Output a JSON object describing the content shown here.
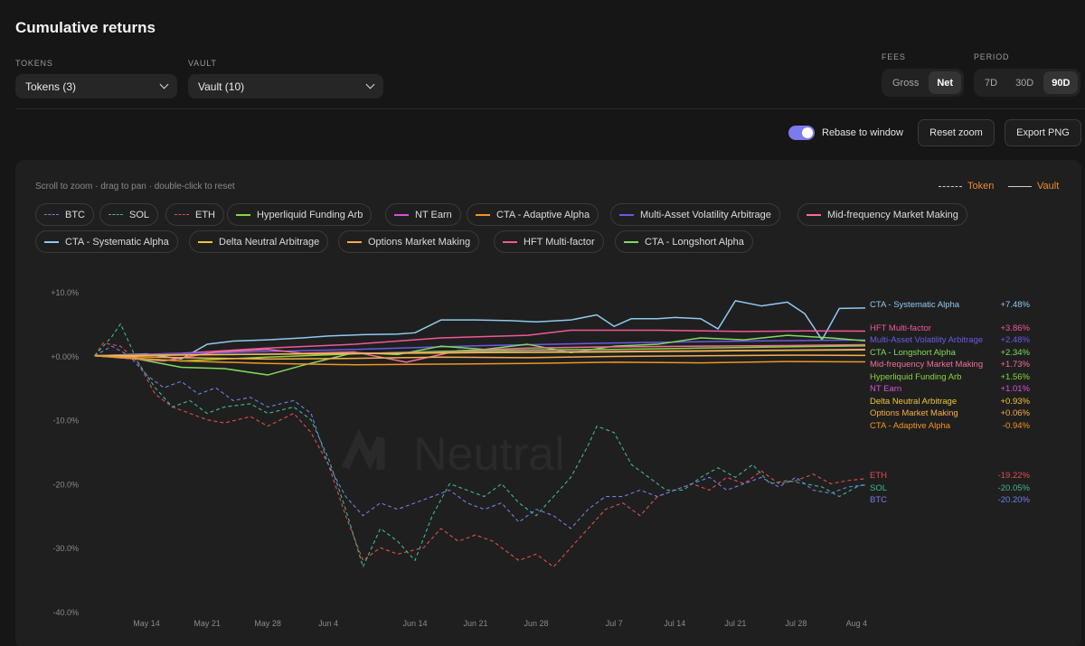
{
  "title": "Cumulative returns",
  "filters": {
    "tokens_label": "TOKENS",
    "tokens_value": "Tokens (3)",
    "vault_label": "VAULT",
    "vault_value": "Vault (10)",
    "fees_label": "FEES",
    "fees_options": [
      "Gross",
      "Net"
    ],
    "fees_selected": "Net",
    "period_label": "PERIOD",
    "period_options": [
      "7D",
      "30D",
      "90D"
    ],
    "period_selected": "90D"
  },
  "controls": {
    "rebase_label": "Rebase to window",
    "rebase_on": true,
    "reset_zoom": "Reset zoom",
    "export_png": "Export PNG"
  },
  "hint": "Scroll to zoom · drag to pan · double-click to reset",
  "legend_keys": {
    "token": "Token",
    "vault": "Vault"
  },
  "watermark": "Neutral",
  "chips": [
    {
      "name": "BTC",
      "color": "#6f7fe8",
      "kind": "token"
    },
    {
      "name": "SOL",
      "color": "#3fb98d",
      "kind": "token"
    },
    {
      "name": "ETH",
      "color": "#e04e4e",
      "kind": "token"
    },
    {
      "name": "Hyperliquid Funding Arb",
      "color": "#8ad63a",
      "kind": "vault"
    },
    {
      "name": "NT Earn",
      "color": "#d553d5",
      "kind": "vault"
    },
    {
      "name": "CTA - Adaptive Alpha",
      "color": "#f0961e",
      "kind": "vault"
    },
    {
      "name": "Multi-Asset Volatility Arbitrage",
      "color": "#6a5ae8",
      "kind": "vault"
    },
    {
      "name": "Mid-frequency Market Making",
      "color": "#f06f9a",
      "kind": "vault"
    },
    {
      "name": "CTA - Systematic Alpha",
      "color": "#8ec9f0",
      "kind": "vault"
    },
    {
      "name": "Delta Neutral Arbitrage",
      "color": "#f0c43a",
      "kind": "vault"
    },
    {
      "name": "Options Market Making",
      "color": "#f5ae4a",
      "kind": "vault"
    },
    {
      "name": "HFT Multi-factor",
      "color": "#f0589a",
      "kind": "vault"
    },
    {
      "name": "CTA - Longshort Alpha",
      "color": "#7fdc5a",
      "kind": "vault"
    }
  ],
  "chart_data": {
    "type": "line",
    "y_ticks": [
      "+10.0%",
      "+0.00%",
      "-10.0%",
      "-20.0%",
      "-30.0%",
      "-40.0%"
    ],
    "y_tick_values": [
      10,
      0,
      -10,
      -20,
      -30,
      -40
    ],
    "ylim": [
      -40,
      10
    ],
    "x_ticks": [
      "May 14",
      "May 21",
      "May 28",
      "Jun 4",
      "Jun 14",
      "Jun 21",
      "Jun 28",
      "Jul 7",
      "Jul 14",
      "Jul 21",
      "Jul 28",
      "Aug 4"
    ],
    "x_tick_days": [
      6,
      13,
      20,
      27,
      37,
      44,
      51,
      60,
      67,
      74,
      81,
      88
    ],
    "x_range_days": [
      -1,
      89
    ],
    "series": [
      {
        "name": "CTA - Systematic Alpha",
        "kind": "vault",
        "color": "#8ec9f0",
        "final_label": "+7.48%",
        "points": [
          [
            0,
            0
          ],
          [
            6,
            0.3
          ],
          [
            10,
            -0.5
          ],
          [
            13,
            1.8
          ],
          [
            16,
            2.3
          ],
          [
            20,
            2.5
          ],
          [
            24,
            2.8
          ],
          [
            27,
            3.1
          ],
          [
            31,
            3.3
          ],
          [
            35,
            3.4
          ],
          [
            37,
            3.6
          ],
          [
            40,
            5.6
          ],
          [
            44,
            5.6
          ],
          [
            48,
            5.5
          ],
          [
            51,
            5.3
          ],
          [
            55,
            5.6
          ],
          [
            58,
            6.4
          ],
          [
            60,
            4.6
          ],
          [
            62,
            5.8
          ],
          [
            65,
            5.8
          ],
          [
            67,
            6.0
          ],
          [
            70,
            5.8
          ],
          [
            72,
            4.2
          ],
          [
            74,
            8.6
          ],
          [
            77,
            7.8
          ],
          [
            80,
            8.4
          ],
          [
            82,
            6.6
          ],
          [
            84,
            2.5
          ],
          [
            86,
            7.4
          ],
          [
            90,
            7.48
          ]
        ]
      },
      {
        "name": "HFT Multi-factor",
        "kind": "vault",
        "color": "#f0589a",
        "final_label": "+3.86%",
        "points": [
          [
            0,
            0
          ],
          [
            10,
            0.4
          ],
          [
            20,
            1.2
          ],
          [
            30,
            1.8
          ],
          [
            40,
            2.8
          ],
          [
            50,
            3.2
          ],
          [
            55,
            4.0
          ],
          [
            65,
            4.0
          ],
          [
            75,
            3.8
          ],
          [
            82,
            3.9
          ],
          [
            90,
            3.86
          ]
        ]
      },
      {
        "name": "Multi-Asset Volatility Arbitrage",
        "kind": "vault",
        "color": "#6a5ae8",
        "final_label": "+2.48%",
        "points": [
          [
            0,
            0
          ],
          [
            15,
            0.5
          ],
          [
            30,
            1.0
          ],
          [
            45,
            1.6
          ],
          [
            60,
            2.0
          ],
          [
            75,
            2.3
          ],
          [
            90,
            2.48
          ]
        ]
      },
      {
        "name": "CTA - Longshort Alpha",
        "kind": "vault",
        "color": "#7fdc5a",
        "final_label": "+2.34%",
        "points": [
          [
            0,
            0
          ],
          [
            5,
            -0.5
          ],
          [
            10,
            -1.8
          ],
          [
            15,
            -2.0
          ],
          [
            20,
            -3.0
          ],
          [
            24,
            -1.5
          ],
          [
            27,
            -0.5
          ],
          [
            30,
            0.5
          ],
          [
            35,
            0.2
          ],
          [
            40,
            1.5
          ],
          [
            45,
            1.0
          ],
          [
            50,
            1.8
          ],
          [
            55,
            0.5
          ],
          [
            60,
            1.5
          ],
          [
            65,
            1.8
          ],
          [
            70,
            2.8
          ],
          [
            75,
            2.5
          ],
          [
            80,
            3.2
          ],
          [
            85,
            2.8
          ],
          [
            90,
            2.34
          ]
        ]
      },
      {
        "name": "Mid-frequency Market Making",
        "kind": "vault",
        "color": "#f06f9a",
        "final_label": "+1.73%",
        "points": [
          [
            0,
            0
          ],
          [
            8,
            -0.8
          ],
          [
            14,
            0.6
          ],
          [
            20,
            1.0
          ],
          [
            24,
            0.4
          ],
          [
            30,
            0.6
          ],
          [
            36,
            -1.0
          ],
          [
            42,
            0.8
          ],
          [
            50,
            1.2
          ],
          [
            60,
            1.4
          ],
          [
            70,
            1.5
          ],
          [
            80,
            1.6
          ],
          [
            90,
            1.73
          ]
        ]
      },
      {
        "name": "Hyperliquid Funding Arb",
        "kind": "vault",
        "color": "#8ad63a",
        "final_label": "+1.56%",
        "points": [
          [
            0,
            0
          ],
          [
            10,
            -0.8
          ],
          [
            20,
            -0.2
          ],
          [
            30,
            0.3
          ],
          [
            40,
            0.7
          ],
          [
            50,
            0.9
          ],
          [
            60,
            1.0
          ],
          [
            70,
            1.2
          ],
          [
            80,
            1.4
          ],
          [
            90,
            1.56
          ]
        ]
      },
      {
        "name": "NT Earn",
        "kind": "vault",
        "color": "#d553d5",
        "final_label": "+1.01%",
        "points": [
          [
            0,
            0
          ],
          [
            15,
            0.2
          ],
          [
            30,
            0.4
          ],
          [
            45,
            0.6
          ],
          [
            60,
            0.7
          ],
          [
            75,
            0.85
          ],
          [
            90,
            1.01
          ]
        ]
      },
      {
        "name": "Delta Neutral Arbitrage",
        "kind": "vault",
        "color": "#f0c43a",
        "final_label": "+0.93%",
        "points": [
          [
            0,
            0
          ],
          [
            15,
            0.2
          ],
          [
            30,
            0.35
          ],
          [
            45,
            0.5
          ],
          [
            60,
            0.6
          ],
          [
            75,
            0.8
          ],
          [
            90,
            0.93
          ]
        ]
      },
      {
        "name": "Options Market Making",
        "kind": "vault",
        "color": "#f5ae4a",
        "final_label": "+0.06%",
        "points": [
          [
            0,
            0
          ],
          [
            10,
            -0.3
          ],
          [
            20,
            -0.5
          ],
          [
            30,
            -0.4
          ],
          [
            40,
            -0.2
          ],
          [
            50,
            -0.3
          ],
          [
            60,
            -0.1
          ],
          [
            70,
            0.0
          ],
          [
            80,
            0.1
          ],
          [
            90,
            0.06
          ]
        ]
      },
      {
        "name": "CTA - Adaptive Alpha",
        "kind": "vault",
        "color": "#f0961e",
        "final_label": "-0.94%",
        "points": [
          [
            0,
            0
          ],
          [
            10,
            -0.8
          ],
          [
            20,
            -1.2
          ],
          [
            30,
            -1.4
          ],
          [
            40,
            -1.3
          ],
          [
            50,
            -1.2
          ],
          [
            60,
            -1.0
          ],
          [
            70,
            -1.1
          ],
          [
            80,
            -0.9
          ],
          [
            90,
            -0.94
          ]
        ]
      },
      {
        "name": "ETH",
        "kind": "token",
        "color": "#e04e4e",
        "final_label": "-19.22%",
        "points": [
          [
            0,
            0
          ],
          [
            1,
            2
          ],
          [
            3,
            1.5
          ],
          [
            5,
            -1
          ],
          [
            7,
            -6
          ],
          [
            9,
            -8
          ],
          [
            11,
            -9
          ],
          [
            13,
            -10
          ],
          [
            15,
            -10.5
          ],
          [
            18,
            -9.5
          ],
          [
            20,
            -11
          ],
          [
            23,
            -9
          ],
          [
            25,
            -12
          ],
          [
            27,
            -17
          ],
          [
            29,
            -25
          ],
          [
            31,
            -32
          ],
          [
            33,
            -30
          ],
          [
            35,
            -31
          ],
          [
            38,
            -30
          ],
          [
            40,
            -27
          ],
          [
            42,
            -29
          ],
          [
            44,
            -28
          ],
          [
            46,
            -29
          ],
          [
            49,
            -32
          ],
          [
            51,
            -31
          ],
          [
            53,
            -33
          ],
          [
            55,
            -30
          ],
          [
            57,
            -27
          ],
          [
            59,
            -24
          ],
          [
            61,
            -23
          ],
          [
            63,
            -25
          ],
          [
            65,
            -22
          ],
          [
            67,
            -21
          ],
          [
            69,
            -20
          ],
          [
            71,
            -21
          ],
          [
            73,
            -19
          ],
          [
            75,
            -20
          ],
          [
            77,
            -18
          ],
          [
            79,
            -20
          ],
          [
            81,
            -19.5
          ],
          [
            83,
            -18.5
          ],
          [
            85,
            -20
          ],
          [
            87,
            -19.5
          ],
          [
            90,
            -19.22
          ]
        ]
      },
      {
        "name": "SOL",
        "kind": "token",
        "color": "#3fb98d",
        "final_label": "-20.05%",
        "points": [
          [
            0,
            0
          ],
          [
            2,
            3
          ],
          [
            3,
            5
          ],
          [
            5,
            -1
          ],
          [
            7,
            -5
          ],
          [
            9,
            -8
          ],
          [
            11,
            -7
          ],
          [
            13,
            -9
          ],
          [
            15,
            -8
          ],
          [
            18,
            -7.5
          ],
          [
            20,
            -9
          ],
          [
            23,
            -8
          ],
          [
            25,
            -10
          ],
          [
            27,
            -16
          ],
          [
            29,
            -24
          ],
          [
            31,
            -33
          ],
          [
            33,
            -27
          ],
          [
            35,
            -29
          ],
          [
            37,
            -32
          ],
          [
            39,
            -25
          ],
          [
            41,
            -20
          ],
          [
            43,
            -21
          ],
          [
            45,
            -22
          ],
          [
            47,
            -20
          ],
          [
            49,
            -23
          ],
          [
            51,
            -25
          ],
          [
            53,
            -22
          ],
          [
            55,
            -19
          ],
          [
            57,
            -14
          ],
          [
            58,
            -11
          ],
          [
            60,
            -12
          ],
          [
            62,
            -17
          ],
          [
            64,
            -19
          ],
          [
            66,
            -21
          ],
          [
            68,
            -21
          ],
          [
            70,
            -19
          ],
          [
            72,
            -17.5
          ],
          [
            74,
            -19
          ],
          [
            76,
            -17
          ],
          [
            78,
            -20
          ],
          [
            80,
            -19.5
          ],
          [
            82,
            -20
          ],
          [
            84,
            -20.5
          ],
          [
            86,
            -22
          ],
          [
            88,
            -20.5
          ],
          [
            90,
            -20.05
          ]
        ]
      },
      {
        "name": "BTC",
        "kind": "token",
        "color": "#6f7fe8",
        "final_label": "-20.20%",
        "points": [
          [
            0,
            0
          ],
          [
            2,
            1.5
          ],
          [
            4,
            0
          ],
          [
            6,
            -3
          ],
          [
            8,
            -5
          ],
          [
            10,
            -4
          ],
          [
            12,
            -6
          ],
          [
            14,
            -5
          ],
          [
            16,
            -7
          ],
          [
            18,
            -6.5
          ],
          [
            20,
            -8
          ],
          [
            23,
            -7
          ],
          [
            25,
            -9
          ],
          [
            27,
            -17
          ],
          [
            29,
            -22
          ],
          [
            31,
            -25
          ],
          [
            33,
            -23
          ],
          [
            35,
            -24
          ],
          [
            37,
            -23
          ],
          [
            39,
            -22
          ],
          [
            41,
            -21
          ],
          [
            43,
            -23
          ],
          [
            45,
            -24
          ],
          [
            47,
            -23
          ],
          [
            49,
            -26
          ],
          [
            51,
            -24
          ],
          [
            53,
            -25
          ],
          [
            55,
            -27
          ],
          [
            57,
            -24
          ],
          [
            59,
            -22
          ],
          [
            61,
            -22
          ],
          [
            63,
            -21
          ],
          [
            65,
            -22
          ],
          [
            67,
            -21
          ],
          [
            69,
            -20
          ],
          [
            71,
            -19
          ],
          [
            73,
            -21
          ],
          [
            75,
            -20
          ],
          [
            77,
            -19
          ],
          [
            79,
            -20.5
          ],
          [
            81,
            -19
          ],
          [
            83,
            -21
          ],
          [
            85,
            -21.5
          ],
          [
            87,
            -20.5
          ],
          [
            90,
            -20.2
          ]
        ]
      }
    ]
  }
}
